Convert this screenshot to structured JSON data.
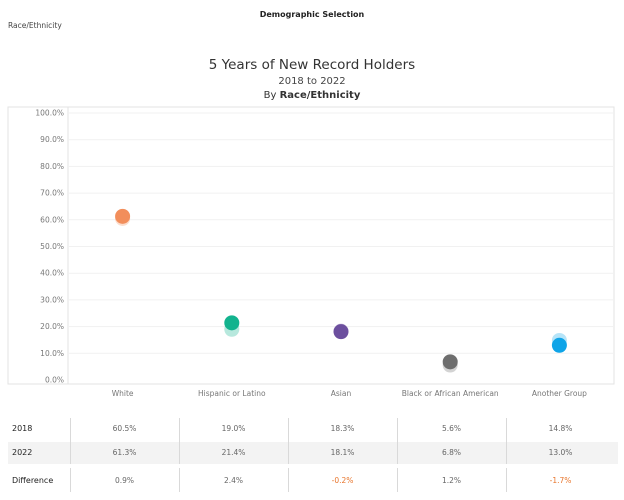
{
  "header": {
    "filter_title": "Demographic Selection",
    "filter_value": "Race/Ethnicity"
  },
  "chart_data": {
    "type": "scatter",
    "title": "5 Years of New Record Holders",
    "subtitle": "2018 to 2022",
    "subtitle2_prefix": "By ",
    "subtitle2_bold": "Race/Ethnicity",
    "ylim": [
      0,
      100
    ],
    "yticks": [
      "0.0%",
      "10.0%",
      "20.0%",
      "30.0%",
      "40.0%",
      "50.0%",
      "60.0%",
      "70.0%",
      "80.0%",
      "90.0%",
      "100.0%"
    ],
    "grid": true,
    "categories": [
      "White",
      "Hispanic or Latino",
      "Asian",
      "Black or African American",
      "Another Group"
    ],
    "colors": [
      "#f28e5b",
      "#12b38e",
      "#6c4f9e",
      "#6e6e6e",
      "#0ea4e8"
    ],
    "series": [
      {
        "name": "2018",
        "values": [
          60.5,
          19.0,
          18.3,
          5.6,
          14.8
        ]
      },
      {
        "name": "2022",
        "values": [
          61.3,
          21.4,
          18.1,
          6.8,
          13.0
        ]
      }
    ]
  },
  "table": {
    "rows": [
      {
        "label": "2018",
        "cells": [
          "60.5%",
          "19.0%",
          "18.3%",
          "5.6%",
          "14.8%"
        ]
      },
      {
        "label": "2022",
        "cells": [
          "61.3%",
          "21.4%",
          "18.1%",
          "6.8%",
          "13.0%"
        ]
      },
      {
        "label": "Difference",
        "cells": [
          "0.9%",
          "2.4%",
          "-0.2%",
          "1.2%",
          "-1.7%"
        ]
      }
    ]
  }
}
